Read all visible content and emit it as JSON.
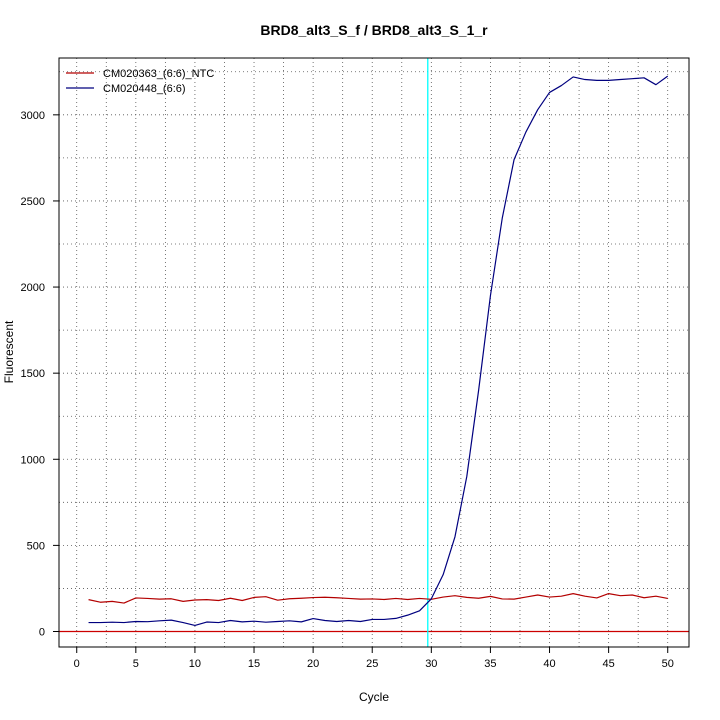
{
  "chart_data": {
    "type": "line",
    "title": "BRD8_alt3_S_f / BRD8_alt3_S_1_r",
    "xlabel": "Cycle",
    "ylabel": "Fluorescent",
    "xlim": [
      -1.5,
      51.8
    ],
    "ylim": [
      -90,
      3330
    ],
    "xticks": [
      0,
      5,
      10,
      15,
      20,
      25,
      30,
      35,
      40,
      45,
      50
    ],
    "yticks": [
      0,
      500,
      1000,
      1500,
      2000,
      2500,
      3000
    ],
    "grid": true,
    "x_grid": [
      0,
      2.5,
      5,
      7.5,
      10,
      12.5,
      15,
      17.5,
      20,
      22.5,
      25,
      27.5,
      30,
      32.5,
      35,
      37.5,
      40,
      42.5,
      45,
      47.5,
      50
    ],
    "y_grid": [
      0,
      250,
      500,
      750,
      1000,
      1250,
      1500,
      1750,
      2000,
      2250,
      2500,
      2750,
      3000,
      3250
    ],
    "legend_position": "top-left",
    "threshold": {
      "type": "vertical",
      "x": 29.7,
      "color": "#00ffff"
    },
    "baseline": {
      "type": "horizontal",
      "y": 0,
      "color": "#cc0000"
    },
    "x": [
      1,
      2,
      3,
      4,
      5,
      6,
      7,
      8,
      9,
      10,
      11,
      12,
      13,
      14,
      15,
      16,
      17,
      18,
      19,
      20,
      21,
      22,
      23,
      24,
      25,
      26,
      27,
      28,
      29,
      30,
      31,
      32,
      33,
      34,
      35,
      36,
      37,
      38,
      39,
      40,
      41,
      42,
      43,
      44,
      45,
      46,
      47,
      48,
      49,
      50
    ],
    "series": [
      {
        "name": "CM020363_(6:6)_NTC",
        "color": "#b30000",
        "values": [
          185,
          170,
          175,
          165,
          195,
          192,
          188,
          190,
          175,
          183,
          185,
          180,
          193,
          180,
          198,
          202,
          182,
          190,
          193,
          197,
          199,
          196,
          192,
          188,
          189,
          186,
          192,
          186,
          192,
          187,
          200,
          208,
          198,
          193,
          204,
          189,
          188,
          200,
          212,
          200,
          205,
          220,
          205,
          195,
          220,
          208,
          212,
          196,
          205,
          192
        ]
      },
      {
        "name": "CM020448_(6:6)",
        "color": "#00007f",
        "values": [
          52,
          52,
          54,
          52,
          58,
          57,
          62,
          66,
          52,
          35,
          55,
          52,
          64,
          56,
          60,
          54,
          58,
          62,
          56,
          75,
          64,
          58,
          64,
          58,
          70,
          70,
          76,
          95,
          120,
          190,
          330,
          550,
          900,
          1400,
          1950,
          2400,
          2740,
          2900,
          3030,
          3130,
          3170,
          3220,
          3205,
          3200,
          3200,
          3205,
          3210,
          3215,
          3175,
          3225
        ]
      }
    ]
  }
}
